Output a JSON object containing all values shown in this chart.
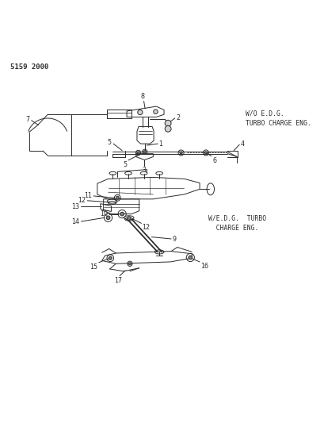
{
  "page_id": "5159 2000",
  "background_color": "#ffffff",
  "line_color": "#2a2a2a",
  "text_color": "#2a2a2a",
  "figsize": [
    4.1,
    5.33
  ],
  "dpi": 100,
  "label_top": "W/O E.D.G.\nTURBO CHARGE ENG.",
  "label_bottom": "W/E.D.G.  TURBO\n  CHARGE ENG."
}
